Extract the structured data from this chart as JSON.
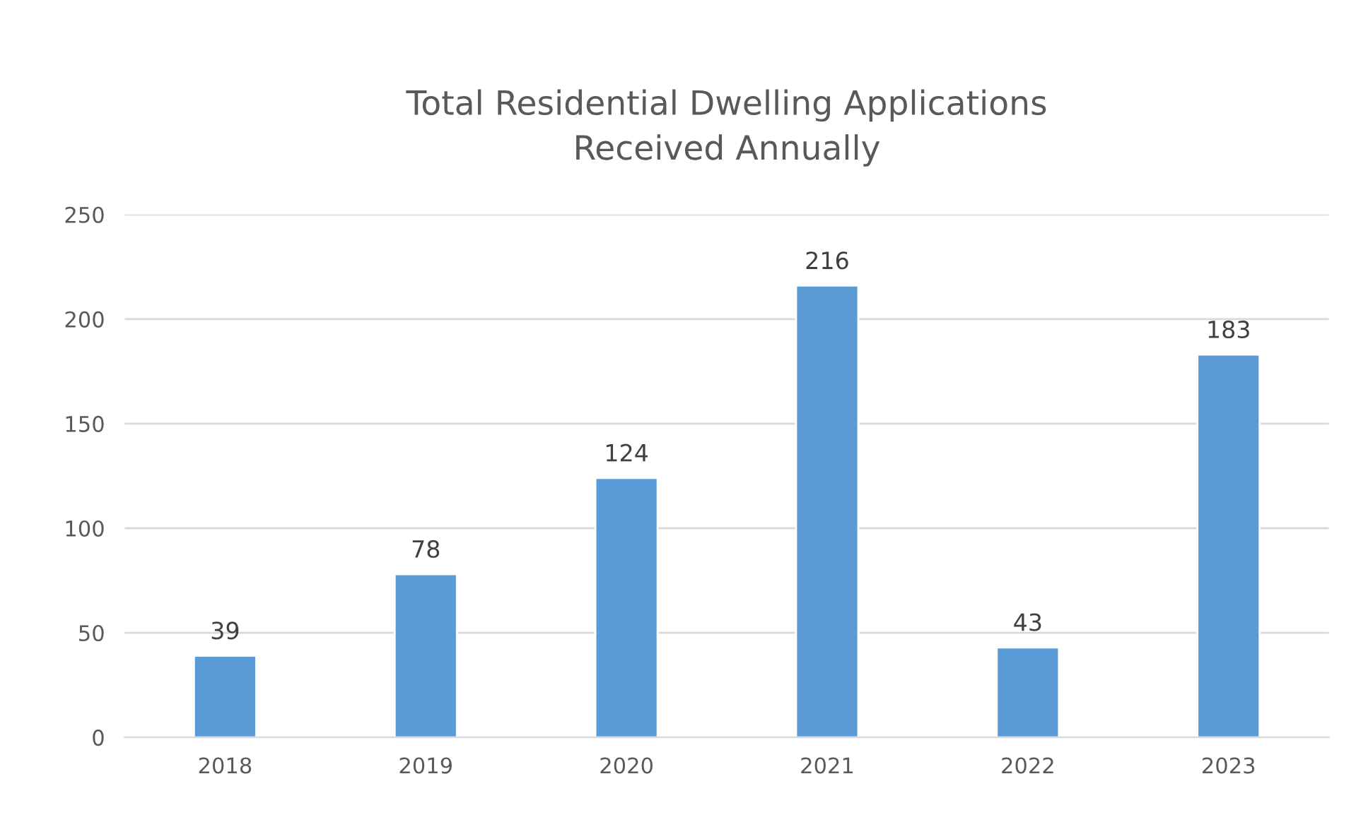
{
  "chart_data": {
    "type": "bar",
    "title": "Total Residential Dwelling Applications\nReceived Annually",
    "categories": [
      "2018",
      "2019",
      "2020",
      "2021",
      "2022",
      "2023"
    ],
    "values": [
      39,
      78,
      124,
      216,
      43,
      183
    ],
    "color": "#5b9bd5",
    "ylim": [
      0,
      250
    ],
    "yticks": [
      0,
      50,
      100,
      150,
      200,
      250
    ],
    "grid": "y",
    "data_labels": true
  }
}
